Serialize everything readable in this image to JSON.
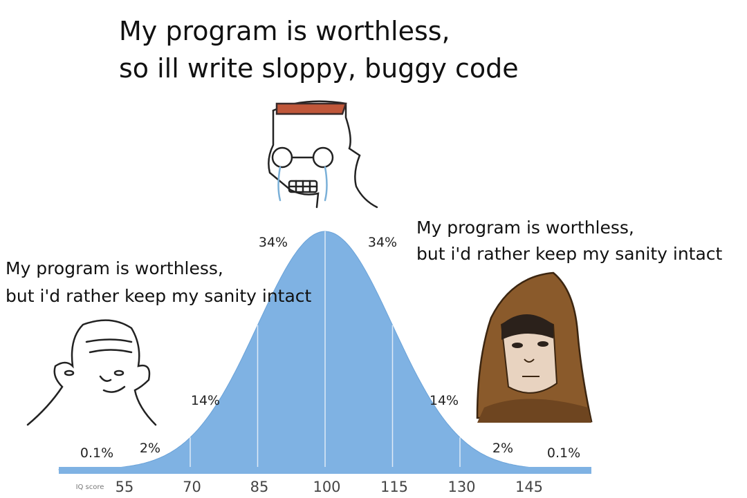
{
  "captions": {
    "top": [
      "My program is worthless,",
      "so ill write sloppy, buggy code"
    ],
    "left": [
      "My program is worthless,",
      "but i'd rather keep my sanity intact"
    ],
    "right": [
      "My program is worthless,",
      "but i'd rather keep my sanity intact"
    ]
  },
  "curve": {
    "percent_labels": [
      "0.1%",
      "2%",
      "14%",
      "34%",
      "34%",
      "14%",
      "2%",
      "0.1%"
    ],
    "axis_label": "IQ score",
    "ticks": [
      "55",
      "70",
      "85",
      "100",
      "115",
      "130",
      "145"
    ]
  }
}
